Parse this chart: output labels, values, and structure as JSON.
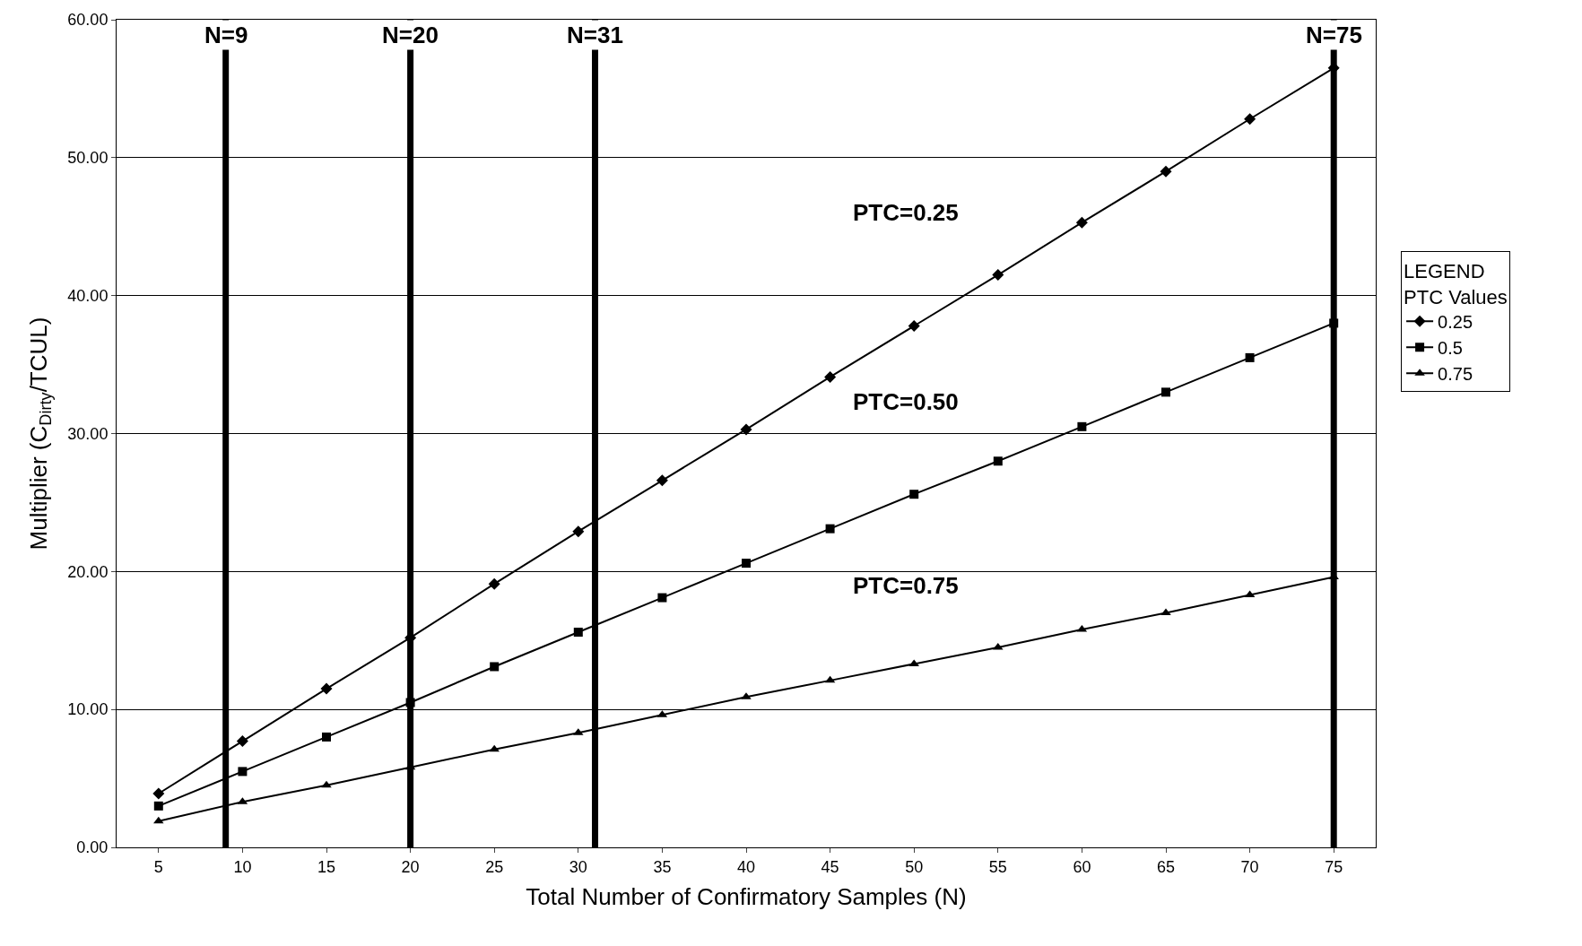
{
  "chart_data": {
    "type": "line",
    "xlabel": "Total Number of Confirmatory Samples (N)",
    "ylabel": "Multiplier (C$_{Dirty}$/TCUL)",
    "legend_title": "LEGEND\nPTC Values",
    "x": [
      5,
      10,
      15,
      20,
      25,
      30,
      35,
      40,
      45,
      50,
      55,
      60,
      65,
      70,
      75
    ],
    "xlim": [
      2.5,
      77.5
    ],
    "xticks": [
      5,
      10,
      15,
      20,
      25,
      30,
      35,
      40,
      45,
      50,
      55,
      60,
      65,
      70,
      75
    ],
    "ylim": [
      0,
      60
    ],
    "yticks": [
      {
        "value": 0,
        "label": "0.00"
      },
      {
        "value": 10,
        "label": "10.00"
      },
      {
        "value": 20,
        "label": "20.00"
      },
      {
        "value": 30,
        "label": "30.00"
      },
      {
        "value": 40,
        "label": "40.00"
      },
      {
        "value": 50,
        "label": "50.00"
      },
      {
        "value": 60,
        "label": "60.00"
      }
    ],
    "grid": "y",
    "legend": "right",
    "series": [
      {
        "name": "0.25",
        "color": "#000000",
        "marker": "diamond",
        "values": [
          3.9,
          7.7,
          11.5,
          15.2,
          19.1,
          22.9,
          26.6,
          30.3,
          34.1,
          37.8,
          41.5,
          45.3,
          49.0,
          52.8,
          56.5
        ]
      },
      {
        "name": "0.5",
        "color": "#000000",
        "marker": "square",
        "values": [
          3.0,
          5.5,
          8.0,
          10.5,
          13.1,
          15.6,
          18.1,
          20.6,
          23.1,
          25.6,
          28.0,
          30.5,
          33.0,
          35.5,
          38.0
        ]
      },
      {
        "name": "0.75",
        "color": "#000000",
        "marker": "triangle",
        "values": [
          1.9,
          3.3,
          4.5,
          5.8,
          7.1,
          8.3,
          9.6,
          10.9,
          12.1,
          13.3,
          14.5,
          15.8,
          17.0,
          18.3,
          19.6
        ]
      }
    ],
    "ref_lines": [
      {
        "axis": "x",
        "value": 9,
        "label": "N=9",
        "color": "#000000"
      },
      {
        "axis": "x",
        "value": 20,
        "label": "N=20",
        "color": "#000000"
      },
      {
        "axis": "x",
        "value": 31,
        "label": "N=31",
        "color": "#000000"
      },
      {
        "axis": "x",
        "value": 75,
        "label": "N=75",
        "color": "#000000"
      }
    ],
    "annotations": [
      "PTC=0.25",
      "PTC=0.50",
      "PTC=0.75"
    ]
  }
}
